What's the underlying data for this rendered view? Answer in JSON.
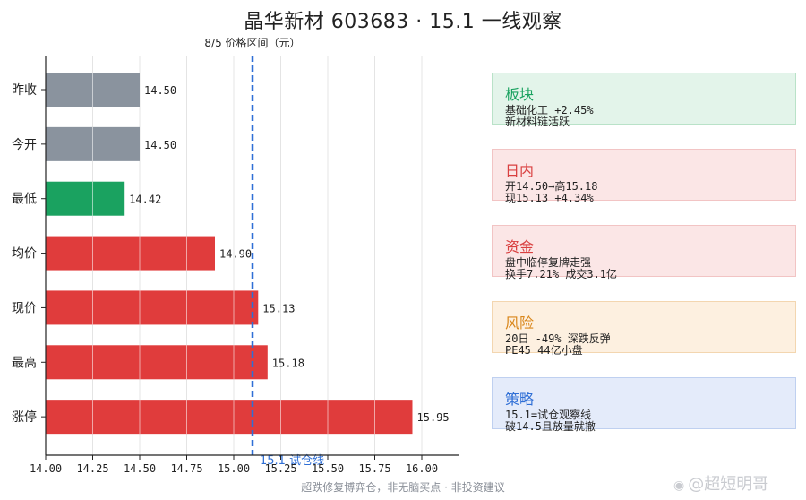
{
  "title": "晶华新材 603683 · 15.1 一线观察",
  "chart_data": {
    "type": "bar",
    "orientation": "horizontal",
    "subtitle": "8/5 价格区间（元）",
    "categories": [
      "昨收",
      "今开",
      "最低",
      "均价",
      "现价",
      "最高",
      "涨停"
    ],
    "values": [
      14.5,
      14.5,
      14.42,
      14.9,
      15.13,
      15.18,
      15.95
    ],
    "value_labels": [
      "14.50",
      "14.50",
      "14.42",
      "14.90",
      "15.13",
      "15.18",
      "15.95"
    ],
    "bar_colors": [
      "#8a939e",
      "#8a939e",
      "#1aa260",
      "#e03c3c",
      "#e03c3c",
      "#e03c3c",
      "#e03c3c"
    ],
    "xlim": [
      14.0,
      16.2
    ],
    "xticks": [
      14.0,
      14.25,
      14.5,
      14.75,
      15.0,
      15.25,
      15.5,
      15.75,
      16.0
    ],
    "xtick_labels": [
      "14.00",
      "14.25",
      "14.50",
      "14.75",
      "15.00",
      "15.25",
      "15.50",
      "15.75",
      "16.00"
    ],
    "grid": "vertical",
    "reference_line": {
      "value": 15.1,
      "label": "15.1 试仓线",
      "color": "#2f6fd6",
      "style": "dashed"
    }
  },
  "cards": [
    {
      "title": "板块",
      "line1": "基础化工 +2.45%",
      "line2": "新材料链活跃",
      "title_color": "#1aa260",
      "bg": "#e3f4ea",
      "border": "#b9e2c8"
    },
    {
      "title": "日内",
      "line1": "开14.50→高15.18",
      "line2": "现15.13 +4.34%",
      "title_color": "#d94040",
      "bg": "#fbe6e6",
      "border": "#f2c4c4"
    },
    {
      "title": "资金",
      "line1": "盘中临停复牌走强",
      "line2": "换手7.21% 成交3.1亿",
      "title_color": "#d94040",
      "bg": "#fbe6e6",
      "border": "#f2c4c4"
    },
    {
      "title": "风险",
      "line1": "20日 -49% 深跌反弹",
      "line2": "PE45 44亿小盘",
      "title_color": "#d9861a",
      "bg": "#fdf0e0",
      "border": "#f3d6b0"
    },
    {
      "title": "策略",
      "line1": "15.1=试仓观察线",
      "line2": "破14.5且放量就撤",
      "title_color": "#2f6fd6",
      "bg": "#e4ebfa",
      "border": "#bfd0f0"
    }
  ],
  "footer": "超跌修复博弈仓，非无脑买点 · 非投资建议",
  "watermark": "@超短明哥",
  "watermark_icon": "weibo-icon"
}
